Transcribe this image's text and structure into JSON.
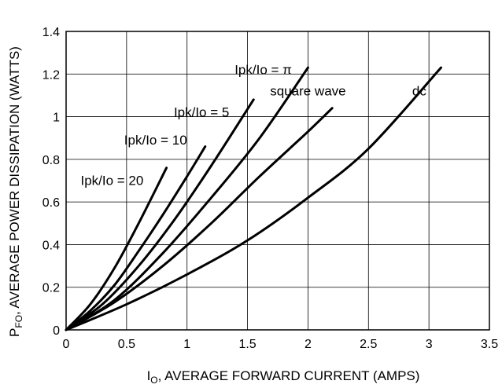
{
  "chart_data": {
    "type": "line",
    "title": "",
    "xlabel_main": "I",
    "xlabel_sub": "O",
    "xlabel_rest": ", AVERAGE FORWARD CURRENT (AMPS)",
    "ylabel_main": "P",
    "ylabel_sub": "FO",
    "ylabel_rest": ", AVERAGE POWER DISSIPATION (WATTS)",
    "xlim": [
      0,
      3.5
    ],
    "ylim": [
      0,
      1.4
    ],
    "xticks": [
      "0",
      "0.5",
      "1",
      "1.5",
      "2",
      "2.5",
      "3",
      "3.5"
    ],
    "yticks": [
      "0",
      "0.2",
      "0.4",
      "0.6",
      "0.8",
      "1",
      "1.2",
      "1.4"
    ],
    "grid": true,
    "legend": "none",
    "series": [
      {
        "name": "Ipk/Io = 20",
        "points": [
          [
            0,
            0
          ],
          [
            0.2,
            0.12
          ],
          [
            0.4,
            0.29
          ],
          [
            0.6,
            0.5
          ],
          [
            0.83,
            0.76
          ]
        ]
      },
      {
        "name": "Ipk/Io = 10",
        "points": [
          [
            0,
            0
          ],
          [
            0.2,
            0.09
          ],
          [
            0.4,
            0.21
          ],
          [
            0.6,
            0.37
          ],
          [
            0.8,
            0.54
          ],
          [
            1.0,
            0.72
          ],
          [
            1.15,
            0.86
          ]
        ]
      },
      {
        "name": "Ipk/Io = 5",
        "points": [
          [
            0,
            0
          ],
          [
            0.3,
            0.12
          ],
          [
            0.6,
            0.3
          ],
          [
            0.9,
            0.52
          ],
          [
            1.2,
            0.77
          ],
          [
            1.55,
            1.08
          ]
        ]
      },
      {
        "name": "Ipk/Io = π",
        "points": [
          [
            0,
            0
          ],
          [
            0.4,
            0.14
          ],
          [
            0.8,
            0.36
          ],
          [
            1.2,
            0.62
          ],
          [
            1.6,
            0.9
          ],
          [
            2.0,
            1.23
          ]
        ]
      },
      {
        "name": "square wave",
        "points": [
          [
            0,
            0
          ],
          [
            0.4,
            0.13
          ],
          [
            0.8,
            0.3
          ],
          [
            1.2,
            0.5
          ],
          [
            1.6,
            0.72
          ],
          [
            2.0,
            0.93
          ],
          [
            2.2,
            1.04
          ]
        ]
      },
      {
        "name": "dc",
        "points": [
          [
            0,
            0
          ],
          [
            0.5,
            0.12
          ],
          [
            1.0,
            0.26
          ],
          [
            1.5,
            0.42
          ],
          [
            2.0,
            0.62
          ],
          [
            2.5,
            0.85
          ],
          [
            3.1,
            1.23
          ]
        ]
      }
    ],
    "labels": [
      {
        "text": "Ipk/Io = 20",
        "x": 0.38,
        "y": 0.68
      },
      {
        "text": "Ipk/Io = 10",
        "x": 0.74,
        "y": 0.87
      },
      {
        "text": "Ipk/Io = 5",
        "x": 1.12,
        "y": 1.0
      },
      {
        "text": "Ipk/Io =  π",
        "x": 1.63,
        "y": 1.2
      },
      {
        "text": "square wave",
        "x": 2.0,
        "y": 1.1
      },
      {
        "text": "dc",
        "x": 2.92,
        "y": 1.1
      }
    ]
  }
}
